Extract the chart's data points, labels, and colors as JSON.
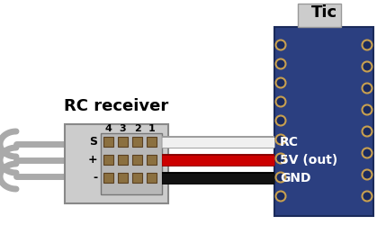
{
  "bg_color": "#ffffff",
  "title_tic": "Tic",
  "title_rc": "RC receiver",
  "label_rc": "RC",
  "label_5v": "5V (out)",
  "label_gnd": "GND",
  "label_s": "S",
  "label_plus": "+",
  "label_minus": "-",
  "pin_numbers": [
    "4",
    "3",
    "2",
    "1"
  ],
  "board_color": "#2b3f80",
  "board_edge_color": "#1a2a5a",
  "connector_bg": "#cccccc",
  "connector_border": "#888888",
  "pin_color": "#8b7040",
  "pin_border": "#5a4020",
  "wire_white": "#f0f0f0",
  "wire_white_border": "#999999",
  "wire_red": "#cc0000",
  "wire_black": "#111111",
  "cable_gray": "#aaaaaa",
  "usb_color": "#cccccc",
  "hole_fill": "#1a2a60",
  "hole_ring": "#c8a050",
  "text_color_dark": "#000000",
  "text_color_light": "#ffffff",
  "fig_w": 4.29,
  "fig_h": 2.5,
  "dpi": 100
}
